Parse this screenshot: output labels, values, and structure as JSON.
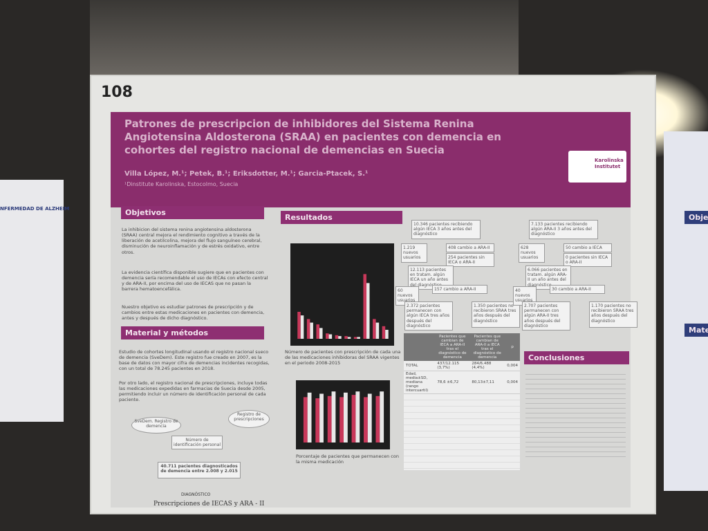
{
  "board_number": "108",
  "left_panel": {
    "heading": "NFERMEDAD DE ALZHEIM"
  },
  "right_panel": {
    "heading": "Objeti",
    "heading_2": "Materi"
  },
  "poster": {
    "title": "Patrones de prescripcion de inhibidores del Sistema Renina Angiotensina Aldosterona (SRAA) en pacientes con demencia en cohortes del registro nacional de demencias en Suecia",
    "authors": "Villa López, M.¹; Petek, B.¹; Eriksdotter, M.¹; Garcia-Ptacek, S.¹",
    "affiliation": "¹Dinstitute Karolinska, Estocolmo, Suecia",
    "logo": "Karolinska Institutet",
    "objetivos": {
      "heading": "Objetivos",
      "paragraphs": [
        "La inhibicion del sistema renina angiotensina aldosterona (SRAA) central mejora el rendimiento cognitivo a través de la liberación de acetilcolina, mejora del flujo sanguíneo cerebral, disminución de neuroinflamación y de estrés oxidativo, entre otros.",
        "La evidencia científica disponible sugiere que en pacientes con demencia sería recomendable el uso de IECAs con efecto central y de ARA-II, por encima del uso de IECAS que no pasan la barrera hematoencefálica.",
        "Nuestro objetivo es estudiar patrones de prescripción y de cambios entre estas medicaciones en pacientes con demencia, antes y después de dicho diagnóstico."
      ]
    },
    "metodos": {
      "heading": "Material y métodos",
      "paragraphs": [
        "Estudio de cohortes longitudinal usando el registro nacional sueco de demencia (SveDem). Este registro fue creado en 2007, es la base de datos con mayor cifra de demencias incidentes recogidas, con un total de 78.245 pacientes en 2018.",
        "Por otro lado, el registro nacional de prescripciones, incluye todas las medicaciones expedidas en farmacias de Suecia desde 2005, permitiendo incluir un número de identificación personal de cada paciente."
      ],
      "flow": [
        "SveDem. Registro de demencia",
        "Registro de prescripciones",
        "Número de identificación personal",
        "40.711 pacientes diagnosticados de demencia entre 2.008 y 2.015",
        "DIAGNÓSTICO",
        "Prescripciones de IECAS y ARA - II"
      ]
    },
    "resultados": {
      "heading": "Resultados",
      "figure_1": {
        "caption": "Número de pacientes con prescripción de cada una de las medicaciones inhibidoras del SRAA vigentes en el periodo 2008-2015",
        "ylim": [
          0,
          100
        ],
        "series": [
          {
            "color": "#c8385a",
            "values": [
              30,
              22,
              16,
              6,
              4,
              3,
              2,
              72,
              22,
              14
            ]
          },
          {
            "color": "#e8e8e8",
            "values": [
              26,
              18,
              12,
              5,
              3,
              2,
              2,
              62,
              18,
              10
            ]
          }
        ]
      },
      "figure_2": {
        "caption": "Porcentaje de pacientes que permanecen con la misma medicación",
        "ylim": [
          0,
          100
        ],
        "series": [
          {
            "color": "#c8385a",
            "values": [
              80,
              78,
              82,
              80,
              84,
              80,
              82
            ]
          },
          {
            "color": "#e8e8e8",
            "values": [
              88,
              86,
              90,
              88,
              90,
              86,
              90
            ]
          }
        ]
      },
      "flow_ieca": [
        "10.346 pacientes recibiendo algún IECA 3 años antes del diagnóstico",
        "1.219 nuevos usuarios",
        "408 cambio a ARA-II",
        "254 pacientes sin IECA o ARA-II",
        "12.113 pacientes en tratam. algún IECA un año antes del diagnóstico",
        "60 nuevos usuarios",
        "157 cambio a ARA-II",
        "2.372 pacientes permanecen con algún IECA tres años después del diagnóstico",
        "1.350 pacientes no recibieron SRAA tres años después del diagnóstico"
      ],
      "flow_ara": [
        "7.133 pacientes recibiendo algún ARA-II 3 años antes del diagnóstico",
        "628 nuevos usuarios",
        "50 cambio a IECA",
        "0 pacientes sin IECA o ARA-II",
        "6.066 pacientes en tratam. algún ARA-II un año antes del diagnóstico",
        "40 nuevos usuarios",
        "30 cambio a ARA-II",
        "2.707 pacientes permanecen con algún ARA-II tres años después del diagnóstico",
        "1.170 pacientes no recibieron SRAA tres años después del diagnóstico"
      ],
      "table": {
        "header": [
          "Pacientes que cambian de IECA a ARA-II tras el diagnóstico de demencia",
          "Pacientes que cambian de ARA-II a IECA tras el diagnóstico de demencia",
          "p"
        ],
        "rows": [
          [
            "TOTAL",
            "437/12.115 (3,7%)",
            "284/6.488 (4,4%)",
            "0,004"
          ],
          [
            "Edad, media±SD, mediana (rango intercuartil)",
            "78,6 ±6,72",
            "80,13±7,11",
            "0,004"
          ]
        ]
      }
    },
    "conclusiones": {
      "heading": "Conclusiones"
    }
  }
}
